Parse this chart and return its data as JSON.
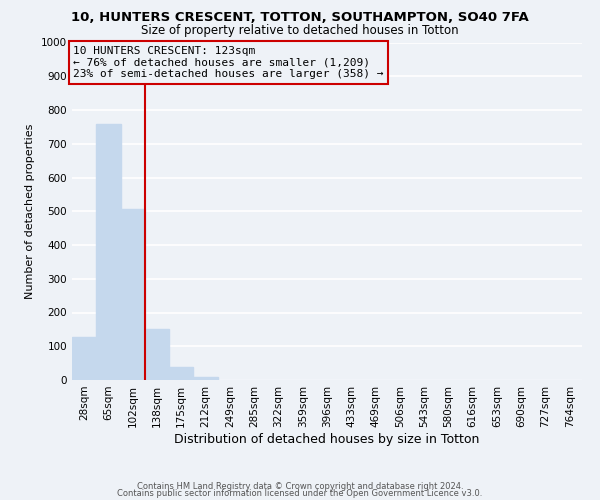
{
  "title": "10, HUNTERS CRESCENT, TOTTON, SOUTHAMPTON, SO40 7FA",
  "subtitle": "Size of property relative to detached houses in Totton",
  "xlabel": "Distribution of detached houses by size in Totton",
  "ylabel": "Number of detached properties",
  "bar_labels": [
    "28sqm",
    "65sqm",
    "102sqm",
    "138sqm",
    "175sqm",
    "212sqm",
    "249sqm",
    "285sqm",
    "322sqm",
    "359sqm",
    "396sqm",
    "433sqm",
    "469sqm",
    "506sqm",
    "543sqm",
    "580sqm",
    "616sqm",
    "653sqm",
    "690sqm",
    "727sqm",
    "764sqm"
  ],
  "bar_values": [
    127,
    760,
    507,
    152,
    40,
    10,
    0,
    0,
    0,
    0,
    0,
    0,
    0,
    0,
    0,
    0,
    0,
    0,
    0,
    0,
    0
  ],
  "bar_color": "#c5d8ed",
  "annotation_line1": "10 HUNTERS CRESCENT: 123sqm",
  "annotation_line2": "← 76% of detached houses are smaller (1,209)",
  "annotation_line3": "23% of semi-detached houses are larger (358) →",
  "annotation_box_edge_color": "#cc0000",
  "vline_x_idx": 2.5,
  "vline_color": "#cc0000",
  "ylim": [
    0,
    1000
  ],
  "yticks": [
    0,
    100,
    200,
    300,
    400,
    500,
    600,
    700,
    800,
    900,
    1000
  ],
  "footer_line1": "Contains HM Land Registry data © Crown copyright and database right 2024.",
  "footer_line2": "Contains public sector information licensed under the Open Government Licence v3.0.",
  "background_color": "#eef2f7",
  "grid_color": "#ffffff",
  "title_fontsize": 9.5,
  "subtitle_fontsize": 8.5,
  "xlabel_fontsize": 9,
  "ylabel_fontsize": 8,
  "tick_fontsize": 7.5,
  "annotation_fontsize": 8,
  "footer_fontsize": 6
}
